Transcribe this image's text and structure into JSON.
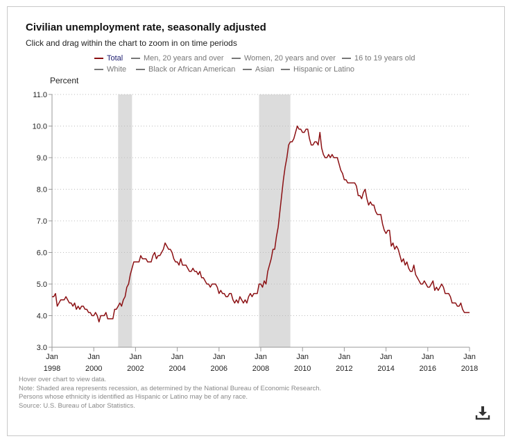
{
  "header": {
    "title": "Civilian unemployment rate, seasonally adjusted",
    "subtitle": "Click and drag within the chart to zoom in on time periods"
  },
  "legend": [
    {
      "label": "Total",
      "active": true
    },
    {
      "label": "Men, 20 years and over",
      "active": false
    },
    {
      "label": "Women, 20 years and over",
      "active": false
    },
    {
      "label": "16 to 19 years old",
      "active": false
    },
    {
      "label": "White",
      "active": false
    },
    {
      "label": "Black or African American",
      "active": false
    },
    {
      "label": "Asian",
      "active": false
    },
    {
      "label": "Hispanic or Latino",
      "active": false
    }
  ],
  "footnotes": [
    "Hover over chart to view data.",
    "Note: Shaded area represents recession, as determined by the National Bureau of Economic Research.",
    "Persons whose ethnicity is identified as Hispanic or Latino may be of any race.",
    "Source: U.S. Bureau of Labor Statistics."
  ],
  "colors": {
    "series": "#8b0f12",
    "recession": "#dcdcdc",
    "grid": "#bbbbbb"
  },
  "icons": {
    "download": "download-icon"
  },
  "chart_data": {
    "type": "line",
    "title": "Civilian unemployment rate, seasonally adjusted",
    "ylabel": "Percent",
    "xlabel": "",
    "ylim": [
      3.0,
      11.0
    ],
    "xlim": [
      "1998-01",
      "2018-01"
    ],
    "y_ticks": [
      "3.0",
      "4.0",
      "5.0",
      "6.0",
      "7.0",
      "8.0",
      "9.0",
      "10.0",
      "11.0"
    ],
    "x_ticks": [
      {
        "month": "Jan",
        "year": "1998"
      },
      {
        "month": "Jan",
        "year": "2000"
      },
      {
        "month": "Jan",
        "year": "2002"
      },
      {
        "month": "Jan",
        "year": "2004"
      },
      {
        "month": "Jan",
        "year": "2006"
      },
      {
        "month": "Jan",
        "year": "2008"
      },
      {
        "month": "Jan",
        "year": "2010"
      },
      {
        "month": "Jan",
        "year": "2012"
      },
      {
        "month": "Jan",
        "year": "2014"
      },
      {
        "month": "Jan",
        "year": "2016"
      },
      {
        "month": "Jan",
        "year": "2018"
      }
    ],
    "grid": true,
    "recessions": [
      {
        "start": "2001-03",
        "end": "2001-11"
      },
      {
        "start": "2007-12",
        "end": "2009-06"
      }
    ],
    "series": [
      {
        "name": "Total",
        "start": "1998-01",
        "values": [
          4.6,
          4.6,
          4.7,
          4.3,
          4.4,
          4.5,
          4.5,
          4.5,
          4.6,
          4.5,
          4.4,
          4.4,
          4.3,
          4.4,
          4.2,
          4.3,
          4.2,
          4.3,
          4.3,
          4.2,
          4.2,
          4.1,
          4.1,
          4.0,
          4.0,
          4.1,
          4.0,
          3.8,
          4.0,
          4.0,
          4.0,
          4.1,
          3.9,
          3.9,
          3.9,
          3.9,
          4.2,
          4.2,
          4.3,
          4.4,
          4.3,
          4.5,
          4.6,
          4.9,
          5.0,
          5.3,
          5.5,
          5.7,
          5.7,
          5.7,
          5.7,
          5.9,
          5.8,
          5.8,
          5.8,
          5.7,
          5.7,
          5.7,
          5.9,
          6.0,
          5.8,
          5.9,
          5.9,
          6.0,
          6.1,
          6.3,
          6.2,
          6.1,
          6.1,
          6.0,
          5.8,
          5.7,
          5.7,
          5.6,
          5.8,
          5.6,
          5.6,
          5.6,
          5.5,
          5.4,
          5.4,
          5.5,
          5.4,
          5.4,
          5.3,
          5.4,
          5.2,
          5.2,
          5.1,
          5.0,
          5.0,
          4.9,
          5.0,
          5.0,
          5.0,
          4.9,
          4.7,
          4.8,
          4.7,
          4.7,
          4.6,
          4.6,
          4.7,
          4.7,
          4.5,
          4.4,
          4.5,
          4.4,
          4.6,
          4.5,
          4.4,
          4.5,
          4.4,
          4.6,
          4.7,
          4.6,
          4.7,
          4.7,
          4.7,
          5.0,
          5.0,
          4.9,
          5.1,
          5.0,
          5.4,
          5.6,
          5.8,
          6.1,
          6.1,
          6.5,
          6.8,
          7.3,
          7.8,
          8.3,
          8.7,
          9.0,
          9.4,
          9.5,
          9.5,
          9.6,
          9.8,
          10.0,
          9.9,
          9.9,
          9.8,
          9.8,
          9.9,
          9.9,
          9.6,
          9.4,
          9.4,
          9.5,
          9.5,
          9.4,
          9.8,
          9.3,
          9.1,
          9.0,
          9.0,
          9.1,
          9.0,
          9.1,
          9.0,
          9.0,
          9.0,
          8.8,
          8.6,
          8.5,
          8.3,
          8.3,
          8.2,
          8.2,
          8.2,
          8.2,
          8.2,
          8.1,
          7.8,
          7.8,
          7.7,
          7.9,
          8.0,
          7.7,
          7.5,
          7.6,
          7.5,
          7.5,
          7.3,
          7.2,
          7.2,
          7.2,
          6.9,
          6.7,
          6.6,
          6.7,
          6.7,
          6.2,
          6.3,
          6.1,
          6.2,
          6.1,
          5.9,
          5.7,
          5.8,
          5.6,
          5.7,
          5.5,
          5.4,
          5.4,
          5.6,
          5.3,
          5.2,
          5.1,
          5.0,
          5.0,
          5.1,
          5.0,
          4.9,
          4.9,
          5.0,
          5.1,
          4.8,
          4.9,
          4.8,
          4.9,
          5.0,
          4.9,
          4.7,
          4.7,
          4.7,
          4.6,
          4.4,
          4.4,
          4.4,
          4.3,
          4.3,
          4.4,
          4.2,
          4.1,
          4.1,
          4.1,
          4.1
        ]
      }
    ]
  }
}
